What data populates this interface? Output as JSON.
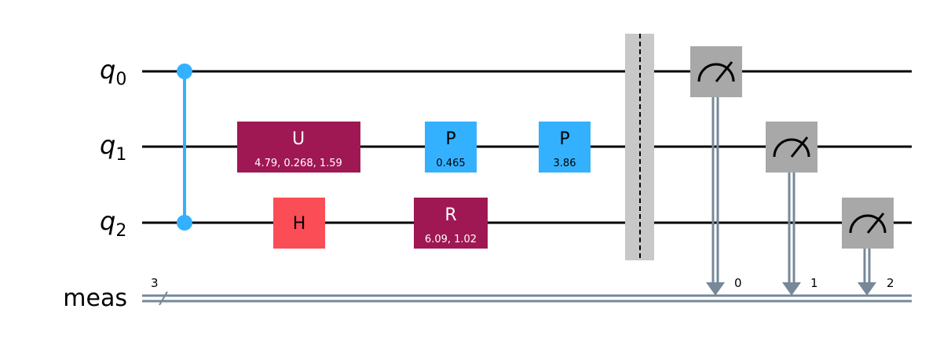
{
  "wires": {
    "q0": {
      "label": "q",
      "sub": "0"
    },
    "q1": {
      "label": "q",
      "sub": "1"
    },
    "q2": {
      "label": "q",
      "sub": "2"
    },
    "meas": {
      "label": "meas",
      "width": "3"
    }
  },
  "gates": {
    "u": {
      "name": "U",
      "params": "4.79, 0.268, 1.59"
    },
    "h": {
      "name": "H"
    },
    "p1": {
      "name": "P",
      "params": "0.465"
    },
    "r": {
      "name": "R",
      "params": "6.09, 1.02"
    },
    "p2": {
      "name": "P",
      "params": "3.86"
    }
  },
  "measurements": {
    "m0": {
      "bit": "0"
    },
    "m1": {
      "bit": "1"
    },
    "m2": {
      "bit": "2"
    }
  },
  "colors": {
    "control": "#33b1ff",
    "u_gate": "#9f1853",
    "h_gate": "#fa4d56",
    "p_gate": "#33b1ff",
    "measure": "#a8a8a8",
    "classical": "#778899",
    "barrier": "#c8c8c8"
  }
}
